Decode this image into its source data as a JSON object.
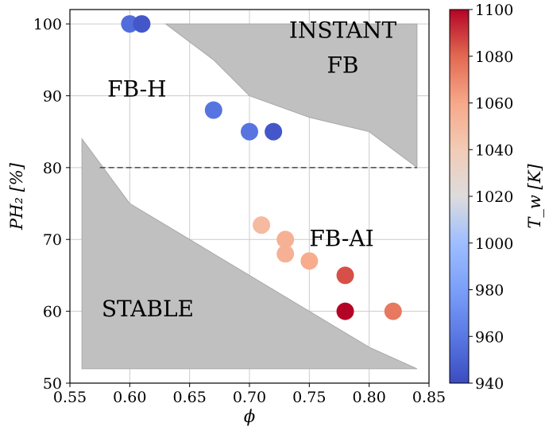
{
  "chart_data": {
    "type": "scatter",
    "xlabel": "ϕ",
    "ylabel": "PH₂ [%]",
    "xlim": [
      0.55,
      0.85
    ],
    "ylim": [
      50,
      102
    ],
    "x_ticks": [
      "0.55",
      "0.60",
      "0.65",
      "0.70",
      "0.75",
      "0.80",
      "0.85"
    ],
    "y_ticks": [
      "50",
      "60",
      "70",
      "80",
      "90",
      "100"
    ],
    "grid": true,
    "colorbar": {
      "label": "T_w [K]",
      "min": 940,
      "max": 1100,
      "colormap": "coolwarm",
      "ticks": [
        "940",
        "960",
        "980",
        "1000",
        "1020",
        "1040",
        "1060",
        "1080",
        "1100"
      ]
    },
    "points": [
      {
        "x": 0.6,
        "y": 100,
        "Tw": 955
      },
      {
        "x": 0.61,
        "y": 100,
        "Tw": 945
      },
      {
        "x": 0.67,
        "y": 88,
        "Tw": 958
      },
      {
        "x": 0.7,
        "y": 85,
        "Tw": 958
      },
      {
        "x": 0.72,
        "y": 85,
        "Tw": 945
      },
      {
        "x": 0.71,
        "y": 72,
        "Tw": 1050
      },
      {
        "x": 0.73,
        "y": 70,
        "Tw": 1055
      },
      {
        "x": 0.73,
        "y": 68,
        "Tw": 1055
      },
      {
        "x": 0.75,
        "y": 67,
        "Tw": 1058
      },
      {
        "x": 0.78,
        "y": 65,
        "Tw": 1085
      },
      {
        "x": 0.78,
        "y": 60,
        "Tw": 1100
      },
      {
        "x": 0.82,
        "y": 60,
        "Tw": 1075
      }
    ],
    "threshold_line": {
      "y": 80,
      "x_range": [
        0.575,
        0.84
      ],
      "style": "dashed"
    },
    "regions": [
      {
        "name": "INSTANT FB",
        "label": "INSTANT\nFB",
        "polygon": [
          [
            0.63,
            100
          ],
          [
            0.84,
            100
          ],
          [
            0.84,
            80
          ],
          [
            0.8,
            85
          ],
          [
            0.75,
            87
          ],
          [
            0.7,
            90
          ],
          [
            0.67,
            95
          ]
        ]
      },
      {
        "name": "STABLE",
        "label": "STABLE",
        "polygon": [
          [
            0.56,
            84
          ],
          [
            0.6,
            75
          ],
          [
            0.7,
            65
          ],
          [
            0.8,
            55
          ],
          [
            0.84,
            52
          ],
          [
            0.56,
            52
          ]
        ]
      }
    ],
    "labels": [
      {
        "text": "FB-H",
        "x": 0.606,
        "y": 89.9
      },
      {
        "text": "FB-AI",
        "x": 0.777,
        "y": 69.1
      },
      {
        "text": "STABLE",
        "x": 0.615,
        "y": 59.3
      },
      {
        "text": "INSTANT",
        "x": 0.778,
        "y": 98.1
      },
      {
        "text": "FB",
        "x": 0.778,
        "y": 93.2
      }
    ]
  }
}
